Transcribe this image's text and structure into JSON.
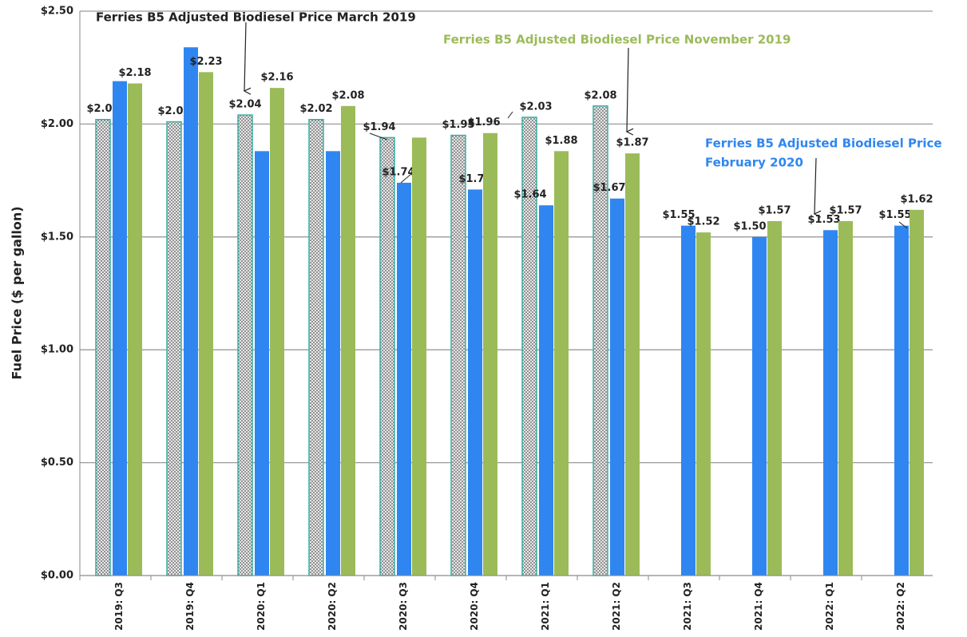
{
  "chart_data": {
    "type": "bar",
    "y_label": "Fuel Price ($ per gallon)",
    "categories": [
      "2019: Q3",
      "2019: Q4",
      "2020: Q1",
      "2020: Q2",
      "2020: Q3",
      "2020: Q4",
      "2021: Q1",
      "2021: Q2",
      "2021: Q3",
      "2021: Q4",
      "2022: Q1",
      "2022: Q2"
    ],
    "series": [
      {
        "color": "#36b0a6",
        "pattern": "dotted",
        "values": [
          2.02,
          2.01,
          2.04,
          2.02,
          1.94,
          1.95,
          2.03,
          2.08,
          null,
          null,
          null,
          null
        ],
        "value_labels": [
          "$2.02",
          "$2.01",
          "$2.04",
          "$2.02",
          "$1.94",
          "$1.95",
          "$2.03",
          "$2.08",
          null,
          null,
          null,
          null
        ]
      },
      {
        "color": "#2f86f0",
        "values": [
          2.19,
          2.34,
          1.88,
          1.88,
          1.74,
          1.71,
          1.64,
          1.67,
          1.55,
          1.5,
          1.53,
          1.55
        ],
        "value_labels": [
          null,
          null,
          null,
          null,
          "$1.74",
          "$1.71",
          "$1.64",
          "$1.67",
          "$1.55",
          "$1.50",
          "$1.53",
          "$1.55"
        ]
      },
      {
        "color": "#9bbb59",
        "values": [
          2.18,
          2.23,
          2.16,
          2.08,
          1.94,
          1.96,
          1.88,
          1.87,
          1.52,
          1.57,
          1.57,
          1.62
        ],
        "value_labels": [
          "$2.18",
          "$2.23",
          "$2.16",
          "$2.08",
          null,
          "$1.96",
          "$1.88",
          "$1.87",
          "$1.52",
          "$1.57",
          "$1.57",
          "$1.62"
        ]
      }
    ],
    "ylim": [
      0,
      2.5
    ],
    "yticks": [
      {
        "value": 0,
        "label": "$0.00"
      },
      {
        "value": 0.5,
        "label": "$0.50"
      },
      {
        "value": 1,
        "label": "$1.00"
      },
      {
        "value": 1.5,
        "label": "$1.50"
      },
      {
        "value": 2,
        "label": "$2.00"
      },
      {
        "value": 2.5,
        "label": "$2.50"
      }
    ],
    "grid": true,
    "annotations": [
      {
        "text": "Ferries B5 Adjusted Biodiesel Price March 2019",
        "color": "#222222"
      },
      {
        "text": "Ferries B5 Adjusted Biodiesel Price November 2019",
        "color": "#9bbb59"
      },
      {
        "text": "Ferries B5 Adjusted Biodiesel Price",
        "color": "#2f86f0"
      },
      {
        "text": "February 2020",
        "color": "#2f86f0"
      }
    ]
  }
}
